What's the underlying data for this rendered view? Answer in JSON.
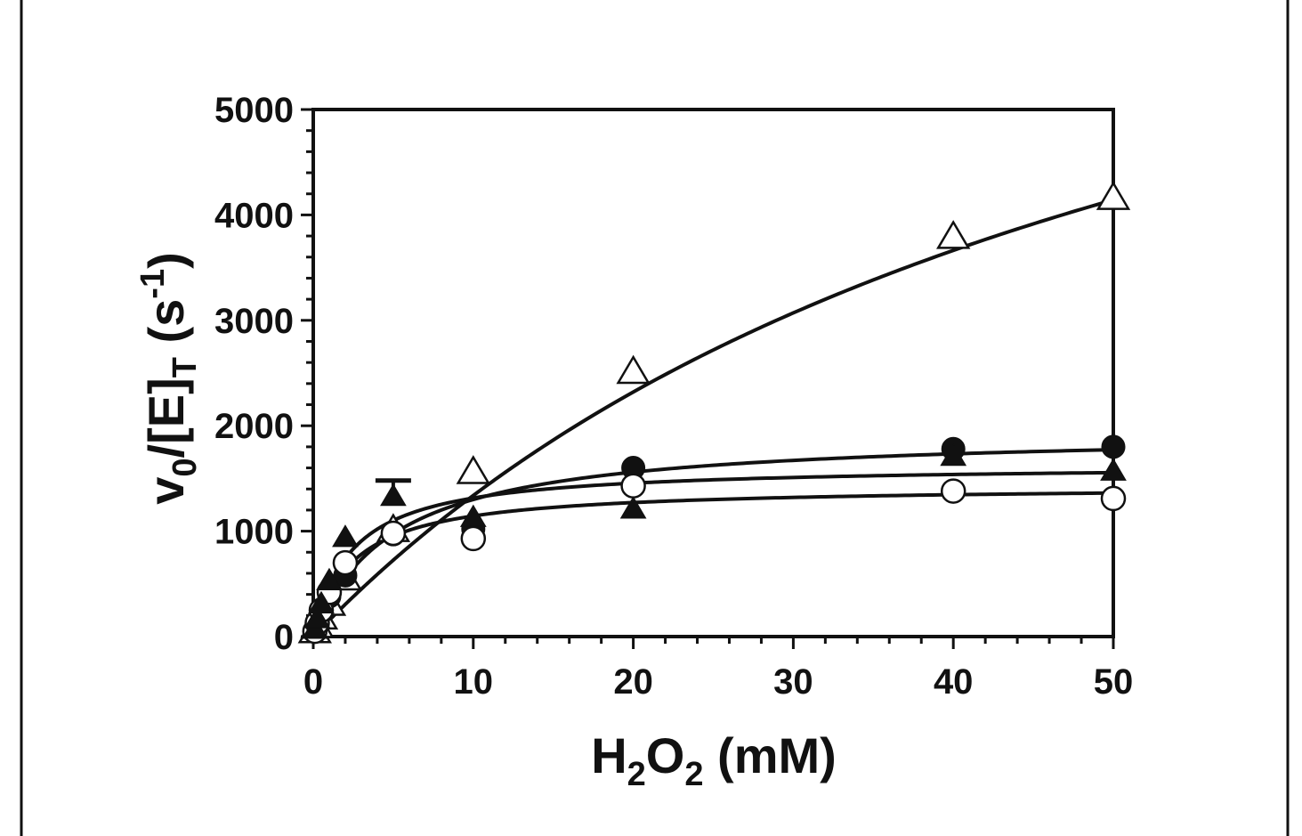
{
  "chart_data": {
    "type": "scatter",
    "title": "",
    "xlabel": {
      "base": "H",
      "sub1": "2",
      "mid": "O",
      "sub2": "2",
      "rest": " (mM)"
    },
    "ylabel": {
      "v": "v",
      "sub0": "0",
      "mid": "/[E]",
      "subT": "T",
      "rest": " (s",
      "sup": "-1",
      "close": ")"
    },
    "xlim": [
      0,
      50
    ],
    "ylim": [
      0,
      5000
    ],
    "x_ticks": [
      0,
      10,
      20,
      30,
      40,
      50
    ],
    "x_tick_labels": [
      "0",
      "10",
      "20",
      "30",
      "40",
      "50"
    ],
    "y_ticks": [
      0,
      1000,
      2000,
      3000,
      4000,
      5000
    ],
    "y_tick_labels": [
      "0",
      "1000",
      "2000",
      "3000",
      "4000",
      "5000"
    ],
    "grid": false,
    "series": [
      {
        "marker": "open-triangle",
        "x": [
          0.1,
          0.25,
          0.5,
          1,
          2,
          5,
          10,
          20,
          40,
          50
        ],
        "y": [
          40,
          90,
          170,
          300,
          540,
          1000,
          1550,
          2500,
          3780,
          4150
        ],
        "fit": {
          "model": "michaelis-menten",
          "vmax": 8700,
          "km": 55
        }
      },
      {
        "marker": "filled-circle",
        "x": [
          0.1,
          0.25,
          0.5,
          1,
          2,
          5,
          10,
          20,
          40,
          50
        ],
        "y": [
          60,
          140,
          230,
          380,
          580,
          970,
          1020,
          1600,
          1780,
          1800
        ],
        "fit": {
          "model": "michaelis-menten",
          "vmax": 1950,
          "km": 5.0
        }
      },
      {
        "marker": "open-circle",
        "x": [
          0.1,
          0.25,
          0.5,
          1,
          2,
          5,
          10,
          20,
          40,
          50
        ],
        "y": [
          50,
          130,
          250,
          420,
          700,
          980,
          930,
          1430,
          1380,
          1310
        ],
        "fit": {
          "model": "michaelis-menten",
          "vmax": 1430,
          "km": 2.5
        }
      },
      {
        "marker": "filled-triangle",
        "x": [
          0.1,
          0.25,
          0.5,
          1,
          2,
          5,
          10,
          20,
          40,
          50
        ],
        "y": [
          60,
          160,
          300,
          520,
          930,
          1320,
          1120,
          1200,
          1700,
          1560
        ],
        "fit": {
          "model": "michaelis-menten",
          "vmax": 1630,
          "km": 2.4
        },
        "error_bar": {
          "x": 5,
          "upper": 1480
        }
      }
    ]
  }
}
